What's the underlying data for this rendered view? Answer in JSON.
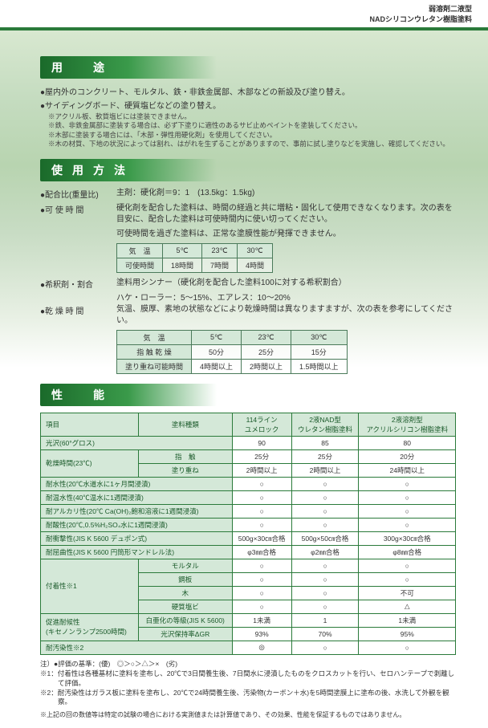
{
  "header": {
    "line1": "弱溶剤二液型",
    "line2": "NADシリコンウレタン樹脂塗料"
  },
  "sections": {
    "yoto": "用　途",
    "shiyou": "使用方法",
    "seinou": "性　能"
  },
  "yoto_bullets": [
    "●屋内外のコンクリート、モルタル、鉄・非鉄金属部、木部などの新設及び塗り替え。",
    "●サイディングボード、硬質塩ビなどの塗り替え。"
  ],
  "yoto_notes": [
    "※アクリル板、軟質塩ビには塗装できません。",
    "※鉄、非鉄金属部に塗装する場合は、必ず下塗りに適性のあるサビ止めペイントを塗装してください。",
    "※木部に塗装する場合には、「木部・弾性用硬化剤」を使用してください。",
    "※木の材質、下地の状況によっては割れ、はがれを生ずることがありますので、事前に試し塗りなどを実施し、確認してください。"
  ],
  "shiyou": {
    "haigouhi": {
      "label": "●配合比(重量比)",
      "text": "主剤：硬化剤＝9：1　(13.5kg：1.5kg)"
    },
    "kashiyou": {
      "label": "●可 使 時 間",
      "text": "硬化剤を配合した塗料は、時間の経過と共に増粘・固化して使用できなくなります。次の表を目安に、配合した塗料は可使時間内に使い切ってください。",
      "text2": "可使時間を過ぎた塗料は、正常な塗膜性能が発揮できません。"
    },
    "kishaku": {
      "label": "●希釈剤・割合",
      "text": "塗料用シンナー（硬化剤を配合した塗料100に対する希釈割合）",
      "text2": "ハケ・ローラー：5～15%、エアレス：10～20%"
    },
    "kansou": {
      "label": "●乾 燥 時 間",
      "text": "気温、膜厚、素地の状態などにより乾燥時間は異なりますますが、次の表を参考にしてください。"
    }
  },
  "table_kashi": {
    "cols": [
      "気　温",
      "5℃",
      "23℃",
      "30℃"
    ],
    "rows": [
      [
        "可使時間",
        "18時間",
        "7時間",
        "4時間"
      ]
    ]
  },
  "table_kansou": {
    "cols": [
      "気　温",
      "5℃",
      "23℃",
      "30℃"
    ],
    "rows": [
      [
        "指 触 乾 燥",
        "50分",
        "25分",
        "15分"
      ],
      [
        "塗り重ね可能時間",
        "4時間以上",
        "2時間以上",
        "1.5時間以上"
      ]
    ]
  },
  "perf": {
    "header": [
      "項目",
      "塗料種類",
      "114ライン\nユメロック",
      "2液NAD型\nウレタン樹脂塗料",
      "2液溶剤型\nアクリルシリコン樹脂塗料"
    ],
    "rows": [
      {
        "h": "光沢(60°グロス)",
        "span": true,
        "cells": [
          "90",
          "85",
          "80"
        ]
      },
      {
        "h": "乾燥時間(23℃)",
        "subrows": [
          {
            "sub": "指　触",
            "cells": [
              "25分",
              "25分",
              "20分"
            ]
          },
          {
            "sub": "塗り重ね",
            "cells": [
              "2時間以上",
              "2時間以上",
              "24時間以上"
            ]
          }
        ]
      },
      {
        "h": "耐水性(20℃水道水に1ヶ月間浸漬)",
        "span": true,
        "cells": [
          "○",
          "○",
          "○"
        ]
      },
      {
        "h": "耐温水性(40℃温水に1週間浸漬)",
        "span": true,
        "cells": [
          "○",
          "○",
          "○"
        ]
      },
      {
        "h": "耐アルカリ性(20℃ Ca(OH)₂飽和溶液に1週間浸漬)",
        "span": true,
        "cells": [
          "○",
          "○",
          "○"
        ]
      },
      {
        "h": "耐酸性(20℃,0.5%H₂SO₄水に1週間浸漬)",
        "span": true,
        "cells": [
          "○",
          "○",
          "○"
        ]
      },
      {
        "h": "耐衝撃性(JIS K 5600 デュポン式)",
        "span": true,
        "cells": [
          "500g×30㎝合格",
          "500g×50㎝合格",
          "300g×30㎝合格"
        ]
      },
      {
        "h": "耐屈曲性(JIS K 5600 円筒形マンドレル法)",
        "span": true,
        "cells": [
          "φ3㎜合格",
          "φ2㎜合格",
          "φ8㎜合格"
        ]
      },
      {
        "h": "付着性※1",
        "subrows": [
          {
            "sub": "モルタル",
            "cells": [
              "○",
              "○",
              "○"
            ]
          },
          {
            "sub": "鋼板",
            "cells": [
              "○",
              "○",
              "○"
            ]
          },
          {
            "sub": "木",
            "cells": [
              "○",
              "○",
              "不可"
            ]
          },
          {
            "sub": "硬質塩ビ",
            "cells": [
              "○",
              "○",
              "△"
            ]
          }
        ]
      },
      {
        "h": "促進耐候性\n(キセノンランプ2500時間)",
        "subrows": [
          {
            "sub": "白亜化の等級(JIS K 5600)",
            "cells": [
              "1未満",
              "1",
              "1未満"
            ]
          },
          {
            "sub": "光沢保持率ΔGR",
            "cells": [
              "93%",
              "70%",
              "95%"
            ]
          }
        ]
      },
      {
        "h": "耐汚染性※2",
        "span": true,
        "cells": [
          "◎",
          "○",
          "○"
        ]
      }
    ]
  },
  "notes": {
    "lead": "注）●評価の基準：(優)　◎＞○＞△＞×　(劣)",
    "items": [
      "※1：付着性は各種基材に塗料を塗布し、20℃で3日間養生後、7日間水に浸漬したものをクロスカットを行い、セロハンテープで剥離して評価。",
      "※2：耐汚染性はガラス板に塗料を塗布し、20℃で24時間養生後、汚染物(カーボン＋水)を5時間塗膜上に塗布の後、水洗して外観を観察。"
    ],
    "foot": "※上記の回の数値等は特定の試験の場合における実測値または計算値であり、その効果、性能を保証するものではありません。"
  }
}
